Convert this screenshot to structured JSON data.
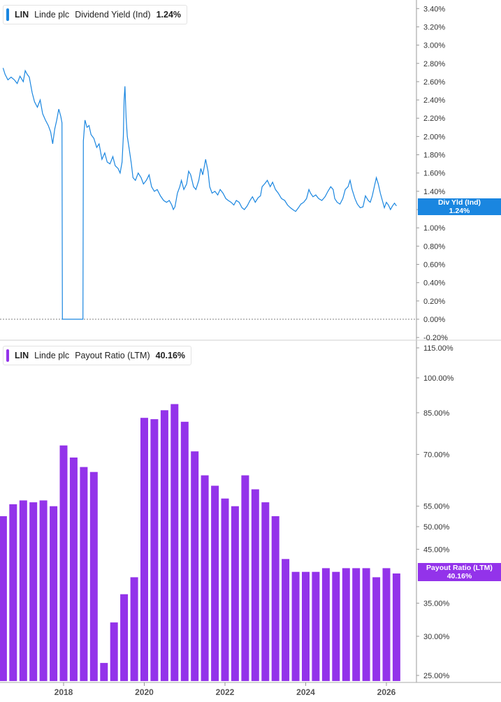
{
  "panels": {
    "top": {
      "symbol": "LIN",
      "company": "Linde plc",
      "metric": "Dividend Yield (Ind)",
      "value": "1.24%",
      "color": "#1a86e0",
      "tag_label": "Div Yld (Ind)",
      "tag_value": "1.24%"
    },
    "bottom": {
      "symbol": "LIN",
      "company": "Linde plc",
      "metric": "Payout Ratio (LTM)",
      "value": "40.16%",
      "color": "#9333ea",
      "tag_label": "Payout Ratio (LTM)",
      "tag_value": "40.16%"
    }
  },
  "chart_data": [
    {
      "type": "line",
      "series_name": "Dividend Yield (Ind)",
      "x_start": 2016.5,
      "x_end": 2026.3,
      "x_ticks": [
        2018,
        2020,
        2022,
        2024,
        2026
      ],
      "ylim": [
        -0.2,
        3.4
      ],
      "y_ticks": [
        "3.40%",
        "3.20%",
        "3.00%",
        "2.80%",
        "2.60%",
        "2.40%",
        "2.20%",
        "2.00%",
        "1.80%",
        "1.60%",
        "1.40%",
        "1.20%",
        "1.00%",
        "0.80%",
        "0.60%",
        "0.40%",
        "0.20%",
        "0.00%",
        "-0.20%"
      ],
      "y_tick_values": [
        3.4,
        3.2,
        3.0,
        2.8,
        2.6,
        2.4,
        2.2,
        2.0,
        1.8,
        1.6,
        1.4,
        1.2,
        1.0,
        0.8,
        0.6,
        0.4,
        0.2,
        0.0,
        -0.2
      ],
      "reference_line": 0.0,
      "points": [
        [
          2016.5,
          2.75
        ],
        [
          2016.55,
          2.68
        ],
        [
          2016.62,
          2.62
        ],
        [
          2016.7,
          2.65
        ],
        [
          2016.78,
          2.62
        ],
        [
          2016.85,
          2.58
        ],
        [
          2016.92,
          2.66
        ],
        [
          2017.0,
          2.6
        ],
        [
          2017.05,
          2.72
        ],
        [
          2017.1,
          2.68
        ],
        [
          2017.15,
          2.65
        ],
        [
          2017.22,
          2.48
        ],
        [
          2017.28,
          2.38
        ],
        [
          2017.35,
          2.32
        ],
        [
          2017.42,
          2.4
        ],
        [
          2017.48,
          2.25
        ],
        [
          2017.55,
          2.18
        ],
        [
          2017.62,
          2.12
        ],
        [
          2017.68,
          2.05
        ],
        [
          2017.73,
          1.92
        ],
        [
          2017.78,
          2.08
        ],
        [
          2017.83,
          2.18
        ],
        [
          2017.88,
          2.3
        ],
        [
          2017.93,
          2.22
        ],
        [
          2017.96,
          2.15
        ],
        [
          2017.97,
          0.0
        ],
        [
          2018.48,
          0.0
        ],
        [
          2018.49,
          1.95
        ],
        [
          2018.53,
          2.18
        ],
        [
          2018.58,
          2.1
        ],
        [
          2018.63,
          2.12
        ],
        [
          2018.68,
          2.02
        ],
        [
          2018.75,
          1.98
        ],
        [
          2018.82,
          1.88
        ],
        [
          2018.88,
          1.92
        ],
        [
          2018.95,
          1.75
        ],
        [
          2019.02,
          1.82
        ],
        [
          2019.08,
          1.72
        ],
        [
          2019.15,
          1.7
        ],
        [
          2019.22,
          1.78
        ],
        [
          2019.28,
          1.68
        ],
        [
          2019.35,
          1.65
        ],
        [
          2019.4,
          1.6
        ],
        [
          2019.45,
          1.72
        ],
        [
          2019.48,
          2.0
        ],
        [
          2019.5,
          2.4
        ],
        [
          2019.52,
          2.55
        ],
        [
          2019.55,
          2.2
        ],
        [
          2019.58,
          2.0
        ],
        [
          2019.62,
          1.88
        ],
        [
          2019.68,
          1.7
        ],
        [
          2019.72,
          1.55
        ],
        [
          2019.78,
          1.52
        ],
        [
          2019.85,
          1.6
        ],
        [
          2019.92,
          1.55
        ],
        [
          2019.98,
          1.48
        ],
        [
          2020.05,
          1.52
        ],
        [
          2020.12,
          1.58
        ],
        [
          2020.18,
          1.45
        ],
        [
          2020.25,
          1.4
        ],
        [
          2020.32,
          1.42
        ],
        [
          2020.4,
          1.35
        ],
        [
          2020.48,
          1.3
        ],
        [
          2020.55,
          1.28
        ],
        [
          2020.62,
          1.3
        ],
        [
          2020.68,
          1.25
        ],
        [
          2020.72,
          1.2
        ],
        [
          2020.76,
          1.23
        ],
        [
          2020.82,
          1.38
        ],
        [
          2020.88,
          1.45
        ],
        [
          2020.92,
          1.52
        ],
        [
          2020.98,
          1.42
        ],
        [
          2021.05,
          1.48
        ],
        [
          2021.1,
          1.62
        ],
        [
          2021.15,
          1.58
        ],
        [
          2021.22,
          1.45
        ],
        [
          2021.28,
          1.42
        ],
        [
          2021.35,
          1.52
        ],
        [
          2021.4,
          1.65
        ],
        [
          2021.45,
          1.58
        ],
        [
          2021.52,
          1.75
        ],
        [
          2021.58,
          1.62
        ],
        [
          2021.62,
          1.45
        ],
        [
          2021.68,
          1.38
        ],
        [
          2021.75,
          1.4
        ],
        [
          2021.82,
          1.36
        ],
        [
          2021.88,
          1.42
        ],
        [
          2021.95,
          1.38
        ],
        [
          2022.02,
          1.32
        ],
        [
          2022.08,
          1.3
        ],
        [
          2022.15,
          1.28
        ],
        [
          2022.22,
          1.25
        ],
        [
          2022.28,
          1.3
        ],
        [
          2022.35,
          1.28
        ],
        [
          2022.42,
          1.22
        ],
        [
          2022.48,
          1.2
        ],
        [
          2022.55,
          1.24
        ],
        [
          2022.62,
          1.3
        ],
        [
          2022.68,
          1.34
        ],
        [
          2022.75,
          1.28
        ],
        [
          2022.82,
          1.33
        ],
        [
          2022.88,
          1.35
        ],
        [
          2022.92,
          1.45
        ],
        [
          2022.98,
          1.48
        ],
        [
          2023.05,
          1.52
        ],
        [
          2023.12,
          1.45
        ],
        [
          2023.18,
          1.5
        ],
        [
          2023.25,
          1.42
        ],
        [
          2023.32,
          1.38
        ],
        [
          2023.4,
          1.32
        ],
        [
          2023.48,
          1.3
        ],
        [
          2023.55,
          1.25
        ],
        [
          2023.62,
          1.22
        ],
        [
          2023.68,
          1.2
        ],
        [
          2023.75,
          1.18
        ],
        [
          2023.82,
          1.22
        ],
        [
          2023.88,
          1.26
        ],
        [
          2023.95,
          1.28
        ],
        [
          2024.02,
          1.32
        ],
        [
          2024.08,
          1.42
        ],
        [
          2024.12,
          1.38
        ],
        [
          2024.18,
          1.34
        ],
        [
          2024.25,
          1.36
        ],
        [
          2024.32,
          1.32
        ],
        [
          2024.4,
          1.3
        ],
        [
          2024.48,
          1.34
        ],
        [
          2024.55,
          1.4
        ],
        [
          2024.62,
          1.45
        ],
        [
          2024.68,
          1.42
        ],
        [
          2024.72,
          1.32
        ],
        [
          2024.78,
          1.28
        ],
        [
          2024.85,
          1.26
        ],
        [
          2024.92,
          1.32
        ],
        [
          2024.98,
          1.42
        ],
        [
          2025.05,
          1.45
        ],
        [
          2025.1,
          1.52
        ],
        [
          2025.15,
          1.42
        ],
        [
          2025.22,
          1.32
        ],
        [
          2025.28,
          1.26
        ],
        [
          2025.35,
          1.22
        ],
        [
          2025.42,
          1.23
        ],
        [
          2025.48,
          1.35
        ],
        [
          2025.55,
          1.3
        ],
        [
          2025.6,
          1.28
        ],
        [
          2025.65,
          1.35
        ],
        [
          2025.7,
          1.45
        ],
        [
          2025.75,
          1.55
        ],
        [
          2025.8,
          1.48
        ],
        [
          2025.85,
          1.38
        ],
        [
          2025.9,
          1.3
        ],
        [
          2025.95,
          1.22
        ],
        [
          2026.0,
          1.28
        ],
        [
          2026.05,
          1.25
        ],
        [
          2026.1,
          1.2
        ],
        [
          2026.15,
          1.24
        ],
        [
          2026.2,
          1.27
        ],
        [
          2026.25,
          1.24
        ]
      ]
    },
    {
      "type": "bar",
      "series_name": "Payout Ratio (LTM)",
      "y_scale": "log",
      "ylim": [
        24.5,
        116
      ],
      "y_ticks": [
        "115.00%",
        "100.00%",
        "85.00%",
        "70.00%",
        "55.00%",
        "50.00%",
        "45.00%",
        "35.00%",
        "30.00%",
        "25.00%"
      ],
      "y_tick_values": [
        115,
        100,
        85,
        70,
        55,
        50,
        45,
        35,
        30,
        25
      ],
      "x_ticks": [
        2018,
        2020,
        2022,
        2024,
        2026
      ],
      "bar_x": [
        2016.5,
        2016.75,
        2017.0,
        2017.25,
        2017.5,
        2017.75,
        2018.0,
        2018.25,
        2018.5,
        2018.75,
        2019.0,
        2019.25,
        2019.5,
        2019.75,
        2020.0,
        2020.25,
        2020.5,
        2020.75,
        2021.0,
        2021.25,
        2021.5,
        2021.75,
        2022.0,
        2022.25,
        2022.5,
        2022.75,
        2023.0,
        2023.25,
        2023.5,
        2023.75,
        2024.0,
        2024.25,
        2024.5,
        2024.75,
        2025.0,
        2025.25,
        2025.5,
        2025.75,
        2026.0,
        2026.25
      ],
      "values": [
        52.5,
        55.5,
        56.5,
        56,
        56.5,
        55,
        73,
        69,
        66,
        64.5,
        26.5,
        32,
        36.5,
        39.5,
        83,
        82.5,
        86,
        88.5,
        81.5,
        71,
        63.5,
        60.5,
        57,
        55,
        63.5,
        59.5,
        56,
        52.5,
        43,
        40.5,
        40.5,
        40.5,
        41.2,
        40.5,
        41.2,
        41.2,
        41.2,
        39.5,
        41.2,
        40.2
      ]
    }
  ]
}
